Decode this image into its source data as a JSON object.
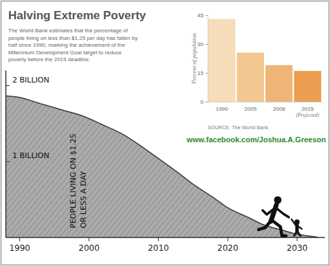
{
  "chart_data": [
    {
      "type": "bar",
      "title": "Halving Extreme Poverty",
      "subtitle": [
        "The World Bank estimates that the percentage of",
        "people living on less than $1.25 per day has fallen by",
        "half since 1990, marking the achievement of the",
        "Millennium Development Goal target to reduce",
        "poverty before the 2015 deadline."
      ],
      "categories": [
        "1990",
        "2005",
        "2008",
        "2015"
      ],
      "values": [
        43,
        25.5,
        19,
        16
      ],
      "colors": [
        "#f6dcb8",
        "#f2c790",
        "#eeb576",
        "#e99e50"
      ],
      "ylabel": "Percent of population",
      "ylim": [
        0,
        45
      ],
      "yticks": [
        0,
        15,
        30,
        45
      ],
      "grid": false,
      "annotations": [
        "(Projected)",
        "SOURCE: The World Bank",
        "www.facebook.com/Joshua.A.Greeson"
      ]
    },
    {
      "type": "area",
      "x": [
        1988,
        1990,
        1993,
        1996,
        1999,
        2002,
        2005,
        2008,
        2010,
        2013,
        2015,
        2018,
        2020,
        2023,
        2025,
        2028,
        2030,
        2033
      ],
      "values": [
        1.86,
        1.84,
        1.76,
        1.68,
        1.6,
        1.48,
        1.35,
        1.17,
        1.04,
        0.84,
        0.7,
        0.52,
        0.39,
        0.26,
        0.17,
        0.09,
        0.04,
        0.0
      ],
      "color": "#ababab",
      "xlim": [
        1988,
        2034
      ],
      "xticks": [
        1990,
        2000,
        2010,
        2020,
        2030
      ],
      "ylim": [
        0,
        2.2
      ],
      "yticks": [
        {
          "value": 1,
          "label": "1 BILLION"
        },
        {
          "value": 2,
          "label": "2 BILLION"
        }
      ],
      "annotations": [
        "PEOPLE LIVING ON $1.25",
        "OR LESS A DAY"
      ]
    }
  ]
}
